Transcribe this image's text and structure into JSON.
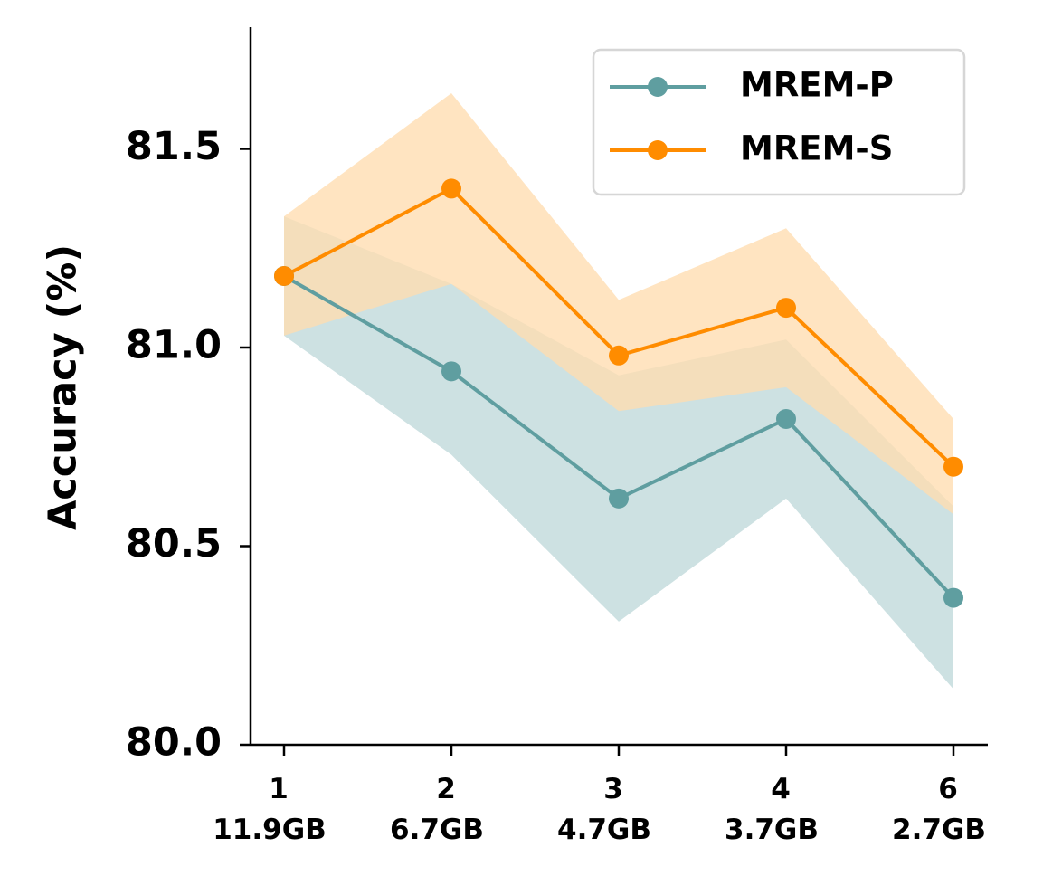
{
  "chart_data": {
    "type": "line",
    "x": [
      "1",
      "2",
      "3",
      "4",
      "6"
    ],
    "x_sublabels": [
      "11.9GB",
      "6.7GB",
      "4.7GB",
      "3.7GB",
      "2.7GB"
    ],
    "ylabel": "Accuracy (%)",
    "xlabel": "",
    "ylim": [
      80.0,
      81.8
    ],
    "yticks": [
      "80.0",
      "80.5",
      "81.0",
      "81.5"
    ],
    "grid": false,
    "legend_position": "top-right",
    "series": [
      {
        "name": "MREM-P",
        "color": "#5f9ea0",
        "band_color": "#cde1e2",
        "values": [
          81.18,
          80.94,
          80.62,
          80.82,
          80.37
        ],
        "lower": [
          81.03,
          80.73,
          80.31,
          80.62,
          80.14
        ],
        "upper": [
          81.33,
          81.16,
          80.93,
          81.02,
          80.6
        ]
      },
      {
        "name": "MREM-S",
        "color": "#ff8c00",
        "band_color": "#ffdcb0",
        "values": [
          81.18,
          81.4,
          80.98,
          81.1,
          80.7
        ],
        "lower": [
          81.03,
          81.16,
          80.84,
          80.9,
          80.58
        ],
        "upper": [
          81.33,
          81.64,
          81.12,
          81.3,
          80.82
        ]
      }
    ]
  }
}
